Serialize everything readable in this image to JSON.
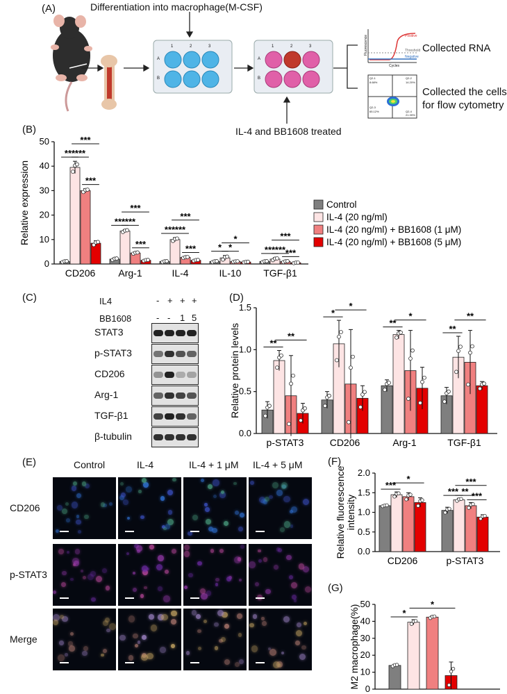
{
  "panelA": {
    "label": "(A)",
    "differentiation_text": "Differentiation into macrophage(M-CSF)",
    "treatment_text": "IL-4 and BB1608 treated",
    "collected_rna": "Collected RNA",
    "collected_cells_line1": "Collected the cells",
    "collected_cells_line2": "for flow cytometry",
    "plate_cols": [
      "1",
      "2",
      "3"
    ],
    "plate_rows": [
      "A",
      "B"
    ],
    "qpcr_mini": {
      "y_label": "Fluorescence",
      "x_label": "Cycles",
      "positive": "Positive",
      "threshold": "Threshold",
      "negative": "Negative"
    },
    "flow_mini": {
      "q1": "Q2-1",
      "q2": "Q2-2",
      "q3": "Q2-3",
      "q4": "Q2-4",
      "v1": "8.68%",
      "v2": "14.20%",
      "v3": "65.12%",
      "v4": "21.39%"
    }
  },
  "panelB": {
    "label": "(B)"
  },
  "panelC": {
    "label": "(C)",
    "header_labels": [
      "IL4",
      "BB1608"
    ],
    "il4_marks": [
      "-",
      "+",
      "+",
      "+"
    ],
    "bb_marks": [
      "-",
      "-",
      "1",
      "5"
    ],
    "rows": [
      "STAT3",
      "p-STAT3",
      "CD206",
      "Arg-1",
      "TGF-β1",
      "β-tubulin"
    ]
  },
  "panelD": {
    "label": "(D)"
  },
  "panelE": {
    "label": "(E)",
    "col_headers": [
      "Control",
      "IL-4",
      "IL-4 + 1 μM",
      "IL-4 + 5 μM"
    ],
    "row_labels": [
      "CD206",
      "p-STAT3",
      "Merge"
    ]
  },
  "panelF": {
    "label": "(F)"
  },
  "panelG": {
    "label": "(G)"
  },
  "colors": {
    "control": "#7f7f7f",
    "il4": "#fde4e4",
    "bb1": "#f08080",
    "bb5": "#e30000"
  },
  "chart_data": [
    {
      "id": "B",
      "type": "bar",
      "categories": [
        "CD206",
        "Arg-1",
        "IL-4",
        "IL-10",
        "TGF-β1"
      ],
      "ylabel": "Relative expression",
      "ylim": [
        0,
        50
      ],
      "yticks": [
        0,
        10,
        20,
        30,
        40,
        50
      ],
      "legend": "right",
      "series": [
        {
          "name": "Control",
          "values": [
            1,
            2,
            1,
            1,
            1
          ]
        },
        {
          "name": "IL-4 (20 ng/ml)",
          "values": [
            39.5,
            13.5,
            10,
            2.5,
            2
          ]
        },
        {
          "name": "IL-4 (20 ng/ml) + BB1608 (1 μM)",
          "values": [
            30,
            4.5,
            2.7,
            1,
            1
          ]
        },
        {
          "name": "IL-4 (20 ng/ml) + BB1608 (5 μM)",
          "values": [
            8.5,
            1.5,
            1.5,
            0.8,
            0.5
          ]
        }
      ],
      "errors": [
        [
          0.3,
          0.5,
          0.3,
          0.3,
          0.3
        ],
        [
          2.5,
          0.6,
          0.8,
          1,
          0.6
        ],
        [
          0.8,
          0.4,
          0.3,
          0.2,
          0.3
        ],
        [
          1,
          0.3,
          0.3,
          0.2,
          0.2
        ]
      ],
      "significance": [
        {
          "cat": 0,
          "from": 0,
          "to": 1,
          "label": "***"
        },
        {
          "cat": 0,
          "from": 1,
          "to": 2,
          "label": "***"
        },
        {
          "cat": 0,
          "from": 2,
          "to": 3,
          "label": "***"
        },
        {
          "cat": 0,
          "from": 1,
          "to": 3,
          "label": "***"
        },
        {
          "cat": 1,
          "from": 0,
          "to": 1,
          "label": "***"
        },
        {
          "cat": 1,
          "from": 1,
          "to": 2,
          "label": "***"
        },
        {
          "cat": 1,
          "from": 2,
          "to": 3,
          "label": "***"
        },
        {
          "cat": 1,
          "from": 1,
          "to": 3,
          "label": "***"
        },
        {
          "cat": 2,
          "from": 0,
          "to": 1,
          "label": "***"
        },
        {
          "cat": 2,
          "from": 1,
          "to": 2,
          "label": "***"
        },
        {
          "cat": 2,
          "from": 2,
          "to": 3,
          "label": "***"
        },
        {
          "cat": 2,
          "from": 1,
          "to": 3,
          "label": "***"
        },
        {
          "cat": 3,
          "from": 0,
          "to": 1,
          "label": "*"
        },
        {
          "cat": 3,
          "from": 1,
          "to": 2,
          "label": "*"
        },
        {
          "cat": 3,
          "from": 1,
          "to": 3,
          "label": "*"
        },
        {
          "cat": 4,
          "from": 0,
          "to": 1,
          "label": "***"
        },
        {
          "cat": 4,
          "from": 1,
          "to": 2,
          "label": "***"
        },
        {
          "cat": 4,
          "from": 2,
          "to": 3,
          "label": "***"
        },
        {
          "cat": 4,
          "from": 1,
          "to": 3,
          "label": "***"
        }
      ]
    },
    {
      "id": "D",
      "type": "bar",
      "categories": [
        "p-STAT3",
        "CD206",
        "Arg-1",
        "TGF-β1"
      ],
      "ylabel": "Relative protein levels",
      "ylim": [
        0,
        1.5
      ],
      "yticks": [
        0.0,
        0.5,
        1.0,
        1.5
      ],
      "series": [
        {
          "name": "Control",
          "values": [
            0.28,
            0.4,
            0.57,
            0.45
          ]
        },
        {
          "name": "IL-4 (20 ng/ml)",
          "values": [
            0.87,
            1.07,
            1.18,
            0.91
          ]
        },
        {
          "name": "IL-4 (20 ng/ml) + BB1608 (1 μM)",
          "values": [
            0.45,
            0.59,
            0.75,
            0.85
          ]
        },
        {
          "name": "IL-4 (20 ng/ml) + BB1608 (5 μM)",
          "values": [
            0.24,
            0.42,
            0.54,
            0.57
          ]
        }
      ],
      "errors": [
        [
          0.1,
          0.1,
          0.07,
          0.1
        ],
        [
          0.12,
          0.28,
          0.05,
          0.25
        ],
        [
          0.48,
          0.65,
          0.48,
          0.38
        ],
        [
          0.12,
          0.15,
          0.25,
          0.05
        ]
      ],
      "significance": [
        {
          "cat": 0,
          "from": 0,
          "to": 1,
          "label": "**"
        },
        {
          "cat": 0,
          "from": 1,
          "to": 3,
          "label": "**"
        },
        {
          "cat": 1,
          "from": 0,
          "to": 1,
          "label": "*"
        },
        {
          "cat": 1,
          "from": 1,
          "to": 3,
          "label": "*"
        },
        {
          "cat": 2,
          "from": 0,
          "to": 1,
          "label": "**"
        },
        {
          "cat": 2,
          "from": 1,
          "to": 3,
          "label": "*"
        },
        {
          "cat": 3,
          "from": 0,
          "to": 1,
          "label": "**"
        },
        {
          "cat": 3,
          "from": 1,
          "to": 3,
          "label": "**"
        }
      ]
    },
    {
      "id": "F",
      "type": "bar",
      "categories": [
        "CD206",
        "p-STAT3"
      ],
      "ylabel": "Relative fluorescence intensity",
      "ylim": [
        0,
        2.0
      ],
      "yticks": [
        0.0,
        0.5,
        1.0,
        1.5,
        2.0
      ],
      "series": [
        {
          "name": "Control",
          "values": [
            1.17,
            1.05
          ]
        },
        {
          "name": "IL-4 (20 ng/ml)",
          "values": [
            1.45,
            1.32
          ]
        },
        {
          "name": "IL-4 (20 ng/ml) + BB1608 (1 μM)",
          "values": [
            1.4,
            1.17
          ]
        },
        {
          "name": "IL-4 (20 ng/ml) + BB1608 (5 μM)",
          "values": [
            1.25,
            0.88
          ]
        }
      ],
      "errors": [
        [
          0.02,
          0.08
        ],
        [
          0.07,
          0.04
        ],
        [
          0.1,
          0.08
        ],
        [
          0.12,
          0.06
        ]
      ],
      "significance": [
        {
          "cat": 0,
          "from": 0,
          "to": 1,
          "label": "***"
        },
        {
          "cat": 0,
          "from": 1,
          "to": 3,
          "label": "*"
        },
        {
          "cat": 1,
          "from": 0,
          "to": 1,
          "label": "***"
        },
        {
          "cat": 1,
          "from": 1,
          "to": 2,
          "label": "**"
        },
        {
          "cat": 1,
          "from": 2,
          "to": 3,
          "label": "***"
        },
        {
          "cat": 1,
          "from": 1,
          "to": 3,
          "label": "***"
        }
      ]
    },
    {
      "id": "G",
      "type": "bar",
      "categories": [
        ""
      ],
      "ylabel": "M2 macrophage(%)",
      "ylim": [
        0,
        50
      ],
      "yticks": [
        0,
        10,
        20,
        30,
        40,
        50
      ],
      "series": [
        {
          "name": "Control",
          "values": [
            14
          ]
        },
        {
          "name": "IL-4 (20 ng/ml)",
          "values": [
            39.5
          ]
        },
        {
          "name": "IL-4 (20 ng/ml) + BB1608 (1 μM)",
          "values": [
            42.5
          ]
        },
        {
          "name": "IL-4 (20 ng/ml) + BB1608 (5 μM)",
          "values": [
            8
          ]
        }
      ],
      "errors": [
        [
          0.7
        ],
        [
          1.5
        ],
        [
          0.8
        ],
        [
          8
        ]
      ],
      "significance": [
        {
          "cat": 0,
          "from": 0,
          "to": 1,
          "label": "*"
        },
        {
          "cat": 0,
          "from": 1,
          "to": 3,
          "label": "*"
        }
      ]
    }
  ]
}
